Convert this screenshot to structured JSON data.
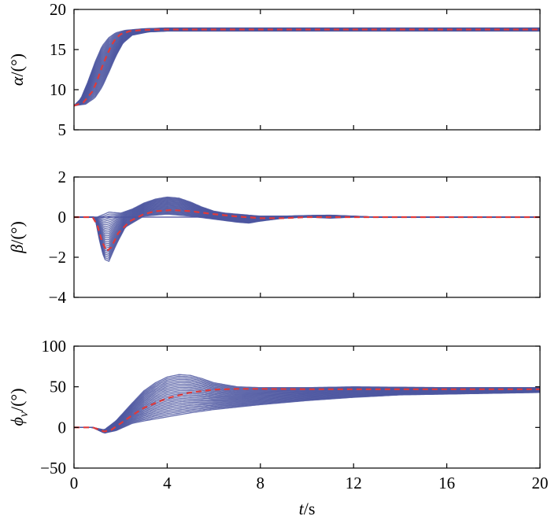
{
  "chart_data": [
    {
      "type": "line",
      "id": "alpha",
      "ylabel_symbol": "α",
      "ylabel_unit": "/(°)",
      "xlim": [
        0,
        20
      ],
      "ylim": [
        5,
        20
      ],
      "yticks": [
        5,
        10,
        15,
        20
      ],
      "xticks": [
        0,
        4,
        8,
        12,
        16,
        20
      ],
      "show_xtick_labels": false,
      "grid": false,
      "band_color": "#4c56a0",
      "nominal_color": "#e03a3a",
      "series": [
        {
          "role": "nominal",
          "x": [
            0,
            0.4,
            0.8,
            1.0,
            1.2,
            1.4,
            1.6,
            1.8,
            2.0,
            2.4,
            3.0,
            4.0,
            6.0,
            10.0,
            20.0
          ],
          "y": [
            8.0,
            8.4,
            9.8,
            11.2,
            12.8,
            14.2,
            15.5,
            16.4,
            16.9,
            17.3,
            17.45,
            17.5,
            17.5,
            17.5,
            17.5
          ]
        },
        {
          "role": "envelope-upper",
          "x": [
            0,
            0.3,
            0.6,
            0.9,
            1.2,
            1.5,
            1.8,
            2.2,
            3.0,
            4.0,
            20.0
          ],
          "y": [
            8.0,
            8.9,
            11.0,
            13.4,
            15.4,
            16.5,
            17.1,
            17.4,
            17.6,
            17.7,
            17.7
          ]
        },
        {
          "role": "envelope-lower",
          "x": [
            0,
            0.5,
            0.9,
            1.2,
            1.5,
            1.8,
            2.1,
            2.5,
            3.2,
            4.0,
            20.0
          ],
          "y": [
            8.0,
            8.2,
            9.0,
            10.3,
            12.2,
            14.2,
            15.8,
            16.8,
            17.2,
            17.3,
            17.3
          ]
        }
      ]
    },
    {
      "type": "line",
      "id": "beta",
      "ylabel_symbol": "β",
      "ylabel_unit": "/(°)",
      "xlim": [
        0,
        20
      ],
      "ylim": [
        -4,
        2
      ],
      "yticks": [
        -4,
        -2,
        0,
        2
      ],
      "xticks": [
        0,
        4,
        8,
        12,
        16,
        20
      ],
      "show_xtick_labels": false,
      "grid": false,
      "zero_line": true,
      "band_color": "#4c56a0",
      "nominal_color": "#e03a3a",
      "series": [
        {
          "role": "nominal",
          "x": [
            0,
            0.8,
            1.0,
            1.2,
            1.4,
            1.6,
            1.9,
            2.4,
            3.0,
            3.5,
            4.2,
            5.0,
            6.0,
            7.0,
            8.0,
            9.0,
            10.0,
            12.0,
            20.0
          ],
          "y": [
            0,
            0,
            -0.4,
            -1.2,
            -1.7,
            -1.5,
            -0.8,
            -0.2,
            0.15,
            0.3,
            0.35,
            0.3,
            0.15,
            0.03,
            -0.05,
            -0.05,
            0,
            0,
            0
          ]
        },
        {
          "role": "envelope-upper",
          "x": [
            0,
            1.0,
            1.5,
            2.0,
            2.5,
            3.0,
            3.5,
            4.0,
            4.5,
            5.0,
            5.5,
            6.0,
            6.5,
            7.0,
            7.5,
            8.0,
            9.0,
            10.0,
            11.0,
            12.0,
            13.0,
            20.0
          ],
          "y": [
            0,
            0,
            0.25,
            0.2,
            0.4,
            0.7,
            0.9,
            1.0,
            0.95,
            0.75,
            0.5,
            0.3,
            0.2,
            0.15,
            0.1,
            0.05,
            0.05,
            0.08,
            0.1,
            0.05,
            0,
            0
          ]
        },
        {
          "role": "envelope-lower",
          "x": [
            0,
            0.9,
            1.1,
            1.3,
            1.5,
            1.8,
            2.2,
            3.0,
            4.0,
            5.0,
            6.0,
            7.0,
            7.5,
            8.0,
            9.0,
            10.0,
            11.0,
            12.0,
            20.0
          ],
          "y": [
            0,
            0,
            -1.2,
            -2.1,
            -2.2,
            -1.4,
            -0.5,
            0.05,
            0.15,
            0.05,
            -0.1,
            -0.25,
            -0.3,
            -0.2,
            -0.05,
            0,
            -0.05,
            0,
            0
          ]
        }
      ]
    },
    {
      "type": "line",
      "id": "phi",
      "ylabel_symbol": "ϕ",
      "ylabel_subscript": "v",
      "ylabel_unit": "/(°)",
      "xlabel_symbol": "t",
      "xlabel_unit": "/s",
      "xlim": [
        0,
        20
      ],
      "ylim": [
        -50,
        100
      ],
      "yticks": [
        -50,
        0,
        50,
        100
      ],
      "xticks": [
        0,
        4,
        8,
        12,
        16,
        20
      ],
      "show_xtick_labels": true,
      "grid": false,
      "band_color": "#4c56a0",
      "nominal_color": "#e03a3a",
      "series": [
        {
          "role": "nominal",
          "x": [
            0,
            0.8,
            1.3,
            1.6,
            2.0,
            2.5,
            3.0,
            4.0,
            5.0,
            6.0,
            7.0,
            8.0,
            10.0,
            12.0,
            14.0,
            16.0,
            20.0
          ],
          "y": [
            0,
            0,
            -5,
            -3,
            5,
            15,
            24,
            36,
            43,
            46.5,
            47.5,
            47.5,
            47,
            47,
            47,
            47,
            47
          ]
        },
        {
          "role": "envelope-upper",
          "x": [
            0,
            0.8,
            1.3,
            1.8,
            2.5,
            3.0,
            3.5,
            4.0,
            4.5,
            5.0,
            5.5,
            6.0,
            7.0,
            8.0,
            10.0,
            12.0,
            16.0,
            20.0
          ],
          "y": [
            0,
            0,
            -3,
            8,
            30,
            45,
            55,
            62,
            65,
            64,
            60,
            55,
            50,
            49,
            49,
            50,
            49,
            49
          ]
        },
        {
          "role": "envelope-lower",
          "x": [
            0,
            0.8,
            1.3,
            1.8,
            2.5,
            3.0,
            4.0,
            5.0,
            6.0,
            8.0,
            10.0,
            12.0,
            14.0,
            16.0,
            18.0,
            20.0
          ],
          "y": [
            0,
            0,
            -7,
            -4,
            5,
            8,
            13,
            18,
            22,
            28,
            33,
            37,
            40,
            41,
            42,
            43
          ]
        }
      ]
    }
  ]
}
